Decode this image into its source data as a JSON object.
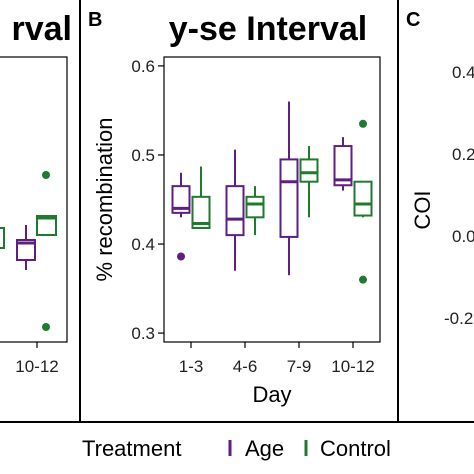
{
  "panels": {
    "a": {
      "title": "rval",
      "xticks": [
        "10-12"
      ],
      "yticks": []
    },
    "b": {
      "letter": "B",
      "title": "y-se Interval"
    },
    "c": {
      "letter": "C",
      "ylabel": "COI",
      "yticks": [
        "0.4",
        "0.2",
        "0.0",
        "-0.2"
      ]
    }
  },
  "legend": {
    "title": "Treatment",
    "items": [
      "Age",
      "Control"
    ]
  },
  "colors": {
    "Age": "#5e1e82",
    "Control": "#1f7a2e"
  },
  "chart_data": [
    {
      "type": "box",
      "panel": "B",
      "title": "y-se Interval",
      "xlabel": "Day",
      "ylabel": "% recombination",
      "categories": [
        "1-3",
        "4-6",
        "7-9",
        "10-12"
      ],
      "ylim": [
        0.29,
        0.61
      ],
      "yticks": [
        0.3,
        0.4,
        0.5,
        0.6
      ],
      "grid": false,
      "series": [
        {
          "name": "Age",
          "boxes": [
            {
              "whisker_low": 0.43,
              "q1": 0.435,
              "median": 0.44,
              "q3": 0.465,
              "whisker_high": 0.48,
              "outliers": [
                0.386
              ]
            },
            {
              "whisker_low": 0.37,
              "q1": 0.41,
              "median": 0.428,
              "q3": 0.465,
              "whisker_high": 0.506,
              "outliers": []
            },
            {
              "whisker_low": 0.365,
              "q1": 0.408,
              "median": 0.47,
              "q3": 0.495,
              "whisker_high": 0.56,
              "outliers": []
            },
            {
              "whisker_low": 0.46,
              "q1": 0.466,
              "median": 0.472,
              "q3": 0.51,
              "whisker_high": 0.52,
              "outliers": []
            }
          ]
        },
        {
          "name": "Control",
          "boxes": [
            {
              "whisker_low": 0.418,
              "q1": 0.418,
              "median": 0.423,
              "q3": 0.453,
              "whisker_high": 0.487,
              "outliers": []
            },
            {
              "whisker_low": 0.41,
              "q1": 0.43,
              "median": 0.445,
              "q3": 0.453,
              "whisker_high": 0.465,
              "outliers": []
            },
            {
              "whisker_low": 0.43,
              "q1": 0.47,
              "median": 0.48,
              "q3": 0.495,
              "whisker_high": 0.51,
              "outliers": []
            },
            {
              "whisker_low": 0.43,
              "q1": 0.432,
              "median": 0.445,
              "q3": 0.47,
              "whisker_high": 0.47,
              "outliers": [
                0.535,
                0.36
              ]
            }
          ]
        }
      ]
    }
  ]
}
